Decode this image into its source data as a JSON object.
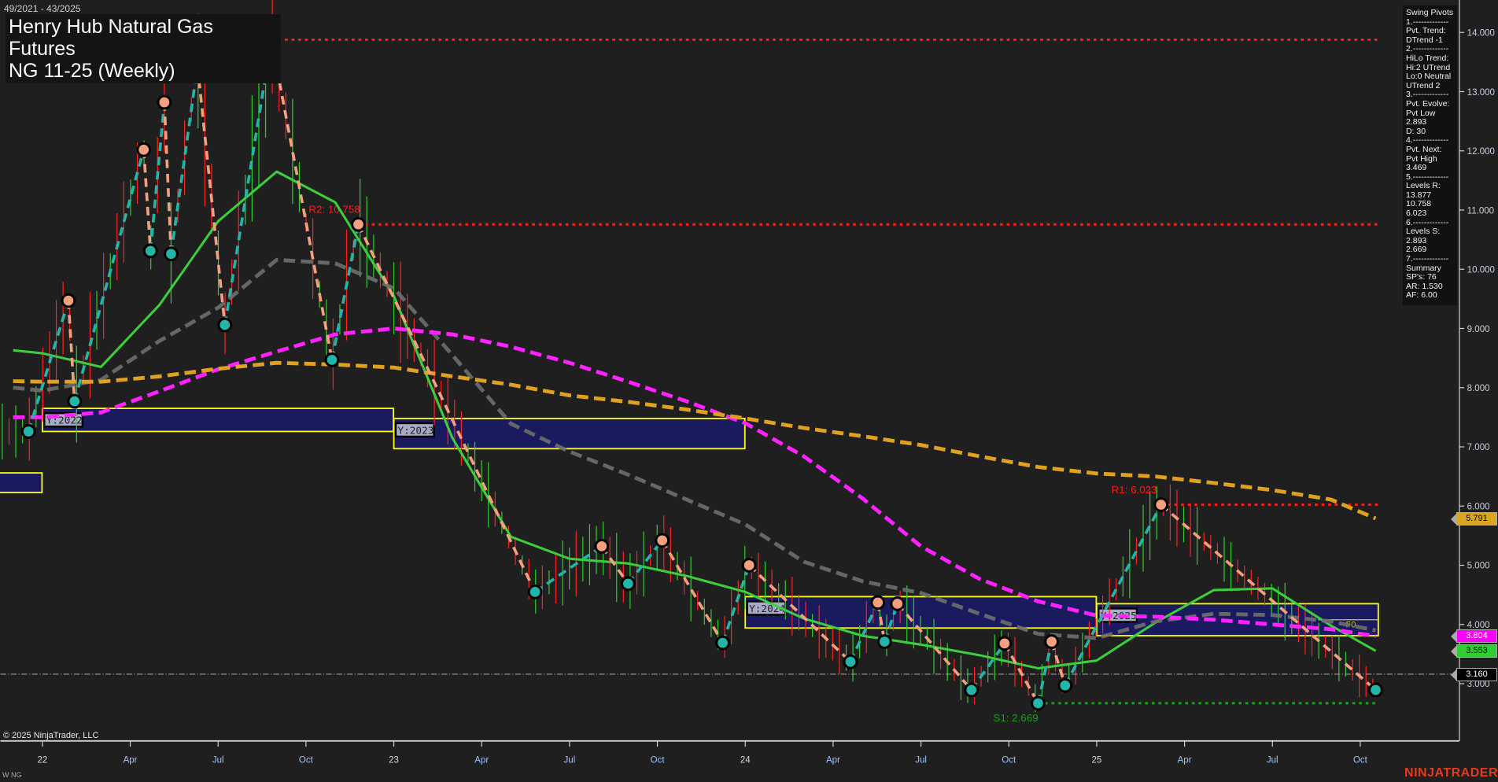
{
  "header": {
    "date_range": "49/2021 - 43/2025",
    "title_line1": "Henry Hub Natural Gas Futures",
    "title_line2": "NG 11-25 (Weekly)"
  },
  "info_panel": {
    "lines": [
      "Swing Pivots",
      "1.-------------",
      "Pvt. Trend:",
      "DTrend -1",
      "2.-------------",
      "HiLo Trend:",
      "Hi:2 UTrend",
      "Lo:0 Neutral",
      "UTrend 2",
      "3.-------------",
      "Pvt. Evolve:",
      "Pvt Low",
      "2.893",
      "D: 30",
      "4.-------------",
      "Pvt. Next:",
      "Pvt High",
      "3.469",
      "5.-------------",
      "Levels R:",
      "13.877",
      "10.758",
      "6.023",
      "6.-------------",
      "Levels S:",
      "2.893",
      "2.669",
      "7.-------------",
      "Summary",
      "SP's: 76",
      "AR: 1.530",
      "AF: 6.00"
    ]
  },
  "footer": {
    "copyright": "© 2025 NinjaTrader, LLC",
    "symbol": "W NG",
    "brand": "NINJATRADER"
  },
  "price_tags": [
    {
      "value": "5.791",
      "bg": "#daa520",
      "fg": "#000000"
    },
    {
      "value": "3.804",
      "bg": "#ff00ff",
      "fg": "#ffffff"
    },
    {
      "value": "3.553",
      "bg": "#32cd32",
      "fg": "#000000"
    },
    {
      "value": "3.160",
      "bg": "#000000",
      "fg": "#ffffff"
    }
  ],
  "chart_data": {
    "type": "line",
    "title": "Henry Hub Natural Gas Futures NG 11-25 (Weekly)",
    "x_range": [
      "2021-12",
      "2025-10"
    ],
    "ylim": [
      2.4,
      14.6
    ],
    "y_ticks": [
      "3.000",
      "4.000",
      "5.000",
      "6.000",
      "7.000",
      "8.000",
      "9.000",
      "10.000",
      "11.000",
      "12.000",
      "13.000",
      "14.000"
    ],
    "x_ticks": [
      {
        "label": "22",
        "date": "2022-01-01"
      },
      {
        "label": "Apr",
        "date": "2022-04-01"
      },
      {
        "label": "Jul",
        "date": "2022-07-01"
      },
      {
        "label": "Oct",
        "date": "2022-10-01"
      },
      {
        "label": "23",
        "date": "2023-01-01"
      },
      {
        "label": "Apr",
        "date": "2023-04-01"
      },
      {
        "label": "Jul",
        "date": "2023-07-01"
      },
      {
        "label": "Oct",
        "date": "2023-10-01"
      },
      {
        "label": "24",
        "date": "2024-01-01"
      },
      {
        "label": "Apr",
        "date": "2024-04-01"
      },
      {
        "label": "Jul",
        "date": "2024-07-01"
      },
      {
        "label": "Oct",
        "date": "2024-10-01"
      },
      {
        "label": "25",
        "date": "2025-01-01"
      },
      {
        "label": "Apr",
        "date": "2025-04-01"
      },
      {
        "label": "Jul",
        "date": "2025-07-01"
      },
      {
        "label": "Oct",
        "date": "2025-10-01"
      }
    ],
    "grid": false,
    "colors": {
      "pivot_high": "#f4a07f",
      "pivot_low": "#23b5a8",
      "resistance": "#ff1a1a",
      "support": "#1e9e1e",
      "ma_fast": "#3ccf3c",
      "ma_mid": "#6e6e6e",
      "ma_slow": "#ff22ff",
      "ma_long": "#e0a020",
      "box_fill": "#1a1a5e",
      "box_border": "#ffff00"
    },
    "swing_pivots": [
      {
        "date": "2021-12-17",
        "price": 7.26,
        "type": "low"
      },
      {
        "date": "2022-01-28",
        "price": 9.47,
        "type": "high"
      },
      {
        "date": "2022-02-04",
        "price": 7.77,
        "type": "low"
      },
      {
        "date": "2022-04-15",
        "price": 12.02,
        "type": "high"
      },
      {
        "date": "2022-04-22",
        "price": 10.31,
        "type": "low"
      },
      {
        "date": "2022-05-06",
        "price": 12.82,
        "type": "high"
      },
      {
        "date": "2022-05-13",
        "price": 10.26,
        "type": "low"
      },
      {
        "date": "2022-06-10",
        "price": 13.44,
        "type": "high"
      },
      {
        "date": "2022-07-08",
        "price": 9.06,
        "type": "low"
      },
      {
        "date": "2022-08-26",
        "price": 13.877,
        "type": "high"
      },
      {
        "date": "2022-10-28",
        "price": 8.47,
        "type": "low"
      },
      {
        "date": "2022-11-25",
        "price": 10.758,
        "type": "high"
      },
      {
        "date": "2023-05-26",
        "price": 4.55,
        "type": "low"
      },
      {
        "date": "2023-08-04",
        "price": 5.32,
        "type": "high"
      },
      {
        "date": "2023-09-01",
        "price": 4.69,
        "type": "low"
      },
      {
        "date": "2023-10-06",
        "price": 5.42,
        "type": "high"
      },
      {
        "date": "2023-12-08",
        "price": 3.69,
        "type": "low"
      },
      {
        "date": "2024-01-05",
        "price": 5.0,
        "type": "high"
      },
      {
        "date": "2024-04-19",
        "price": 3.37,
        "type": "low"
      },
      {
        "date": "2024-05-17",
        "price": 4.37,
        "type": "high"
      },
      {
        "date": "2024-05-24",
        "price": 3.71,
        "type": "low"
      },
      {
        "date": "2024-06-07",
        "price": 4.35,
        "type": "high"
      },
      {
        "date": "2024-08-23",
        "price": 2.893,
        "type": "low"
      },
      {
        "date": "2024-09-27",
        "price": 3.68,
        "type": "high"
      },
      {
        "date": "2024-11-01",
        "price": 2.669,
        "type": "low"
      },
      {
        "date": "2024-11-15",
        "price": 3.71,
        "type": "high"
      },
      {
        "date": "2024-11-29",
        "price": 2.97,
        "type": "low"
      },
      {
        "date": "2025-03-07",
        "price": 6.023,
        "type": "high"
      },
      {
        "date": "2025-10-17",
        "price": 2.893,
        "type": "low"
      }
    ],
    "series_dates": [
      "2021-12",
      "2022-01",
      "2022-03",
      "2022-05",
      "2022-07",
      "2022-09",
      "2022-11",
      "2023-01",
      "2023-03",
      "2023-05",
      "2023-07",
      "2023-09",
      "2023-11",
      "2024-01",
      "2024-03",
      "2024-05",
      "2024-07",
      "2024-09",
      "2024-11",
      "2025-01",
      "2025-03",
      "2025-05",
      "2025-07",
      "2025-09",
      "2025-10-17"
    ],
    "series": [
      {
        "key": "ma_fast",
        "style": "solid",
        "values": [
          8.63,
          8.58,
          8.35,
          9.4,
          10.81,
          11.65,
          11.13,
          9.55,
          7.15,
          5.48,
          5.11,
          5.03,
          4.82,
          4.55,
          4.1,
          3.81,
          3.66,
          3.48,
          3.26,
          3.39,
          4.03,
          4.58,
          4.61,
          3.98,
          3.553
        ]
      },
      {
        "key": "ma_mid",
        "style": "dashed",
        "values": [
          8.0,
          7.95,
          8.13,
          8.79,
          9.35,
          10.16,
          10.1,
          9.68,
          8.55,
          7.39,
          6.92,
          6.53,
          6.11,
          5.69,
          5.06,
          4.73,
          4.53,
          4.18,
          3.84,
          3.77,
          4.05,
          4.18,
          4.16,
          4.05,
          3.9
        ]
      },
      {
        "key": "ma_slow",
        "style": "dashed",
        "values": [
          7.5,
          7.5,
          7.58,
          7.94,
          8.31,
          8.61,
          8.9,
          9.0,
          8.9,
          8.69,
          8.42,
          8.1,
          7.77,
          7.4,
          6.84,
          6.13,
          5.32,
          4.77,
          4.39,
          4.15,
          4.13,
          4.08,
          4.0,
          3.92,
          3.804
        ]
      },
      {
        "key": "ma_long",
        "style": "dashed",
        "values": [
          8.11,
          8.1,
          8.1,
          8.19,
          8.32,
          8.42,
          8.39,
          8.34,
          8.19,
          8.05,
          7.87,
          7.76,
          7.63,
          7.48,
          7.32,
          7.18,
          7.03,
          6.84,
          6.66,
          6.55,
          6.5,
          6.39,
          6.27,
          6.11,
          5.791
        ]
      }
    ],
    "levels": [
      {
        "label": "R3: 13.877",
        "value": 13.877,
        "from": "2022-08-26",
        "kind": "resistance"
      },
      {
        "label": "R2: 10.758",
        "value": 10.758,
        "from": "2022-11-25",
        "kind": "resistance"
      },
      {
        "label": "R1: 6.023",
        "value": 6.023,
        "from": "2025-03-07",
        "kind": "resistance"
      },
      {
        "label": "S1: 2.669",
        "value": 2.669,
        "from": "2024-11-01",
        "kind": "support"
      }
    ],
    "last_price": 3.16,
    "year_boxes": [
      {
        "label": "",
        "from": "2021-09-01",
        "to": "2021-12-31",
        "high": 6.56,
        "low": 6.23
      },
      {
        "label": "Y:2022",
        "from": "2022-01-01",
        "to": "2022-12-31",
        "high": 7.65,
        "low": 7.26
      },
      {
        "label": "Y:2023",
        "from": "2023-01-01",
        "to": "2023-12-31",
        "high": 7.48,
        "low": 6.97
      },
      {
        "label": "Y:2024",
        "from": "2024-01-01",
        "to": "2024-12-31",
        "high": 4.47,
        "low": 3.94
      },
      {
        "label": "Y:2025",
        "from": "2025-01-01",
        "to": "2025-10-24",
        "high": 4.35,
        "low": 3.81
      }
    ],
    "fib_line": {
      "label": "F0",
      "value": 4.08
    }
  }
}
